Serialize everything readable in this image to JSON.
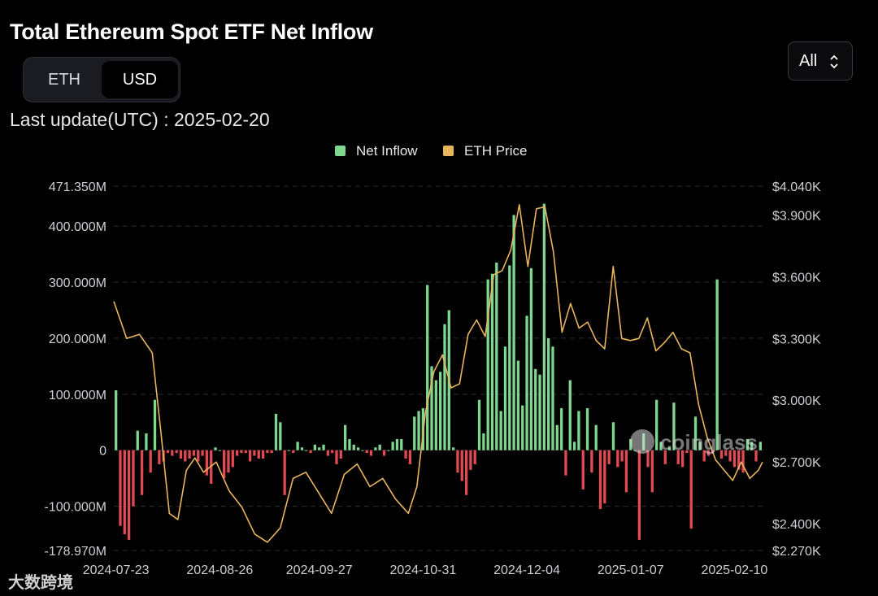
{
  "title": "Total Ethereum Spot ETF Net Inflow",
  "toggle": {
    "eth": "ETH",
    "usd": "USD",
    "selected": "USD"
  },
  "range_select": {
    "value": "All"
  },
  "last_update": "Last update(UTC) : 2025-02-20",
  "watermark": {
    "brand": "coinglass",
    "corner": "大数跨境"
  },
  "colors": {
    "inflow": "#7fd68f",
    "outflow": "#e04a52",
    "price": "#e9b55c",
    "grid": "#2e2e33",
    "axis_text": "#cfcfd3"
  },
  "chart_data": {
    "type": "bar+line",
    "legend": [
      "Net Inflow",
      "ETH Price"
    ],
    "left_axis": {
      "min": -178.97,
      "max": 471.35,
      "ticks": [
        "471.350M",
        "400.000M",
        "300.000M",
        "200.000M",
        "100.000M",
        "0",
        "-100.000M",
        "-178.970M"
      ],
      "tick_values": [
        471.35,
        400,
        300,
        200,
        100,
        0,
        -100,
        -178.97
      ]
    },
    "right_axis": {
      "min": 2270,
      "max": 4040,
      "ticks": [
        "$4.040K",
        "$3.900K",
        "$3.600K",
        "$3.300K",
        "$3.000K",
        "$2.700K",
        "$2.400K",
        "$2.270K"
      ],
      "tick_values": [
        4040,
        3900,
        3600,
        3300,
        3000,
        2700,
        2400,
        2270
      ]
    },
    "x_ticks": [
      {
        "label": "2024-07-23",
        "index": 0
      },
      {
        "label": "2024-08-26",
        "index": 24
      },
      {
        "label": "2024-09-27",
        "index": 47
      },
      {
        "label": "2024-10-31",
        "index": 71
      },
      {
        "label": "2024-12-04",
        "index": 95
      },
      {
        "label": "2025-01-07",
        "index": 119
      },
      {
        "label": "2025-02-10",
        "index": 143
      }
    ],
    "net_inflow": [
      107,
      -135,
      -150,
      -160,
      -100,
      35,
      -80,
      30,
      -40,
      90,
      -25,
      -20,
      -5,
      -10,
      -5,
      -15,
      -20,
      -15,
      -10,
      -20,
      -10,
      -45,
      -60,
      5,
      0,
      -50,
      -40,
      -30,
      -10,
      -5,
      -5,
      -20,
      -10,
      -15,
      -15,
      -5,
      -5,
      65,
      50,
      -80,
      0,
      -5,
      15,
      5,
      0,
      -5,
      10,
      5,
      10,
      -10,
      -5,
      -25,
      -15,
      45,
      20,
      10,
      5,
      0,
      -5,
      -10,
      5,
      10,
      -10,
      0,
      15,
      20,
      20,
      -15,
      -25,
      60,
      70,
      75,
      295,
      150,
      125,
      140,
      225,
      250,
      5,
      -40,
      -55,
      -80,
      -35,
      -25,
      90,
      30,
      305,
      315,
      335,
      70,
      185,
      330,
      420,
      160,
      80,
      240,
      325,
      145,
      135,
      440,
      200,
      185,
      45,
      75,
      -45,
      125,
      15,
      70,
      -70,
      75,
      -40,
      45,
      -105,
      -95,
      -25,
      50,
      -30,
      -20,
      -75,
      20,
      0,
      -160,
      30,
      -30,
      -75,
      90,
      15,
      -25,
      5,
      85,
      -25,
      -30,
      -5,
      -140,
      60,
      15,
      -20,
      -10,
      -5,
      305,
      -15,
      -10,
      -20,
      -30,
      -35,
      -40,
      20,
      15,
      -20,
      15
    ]
  }
}
